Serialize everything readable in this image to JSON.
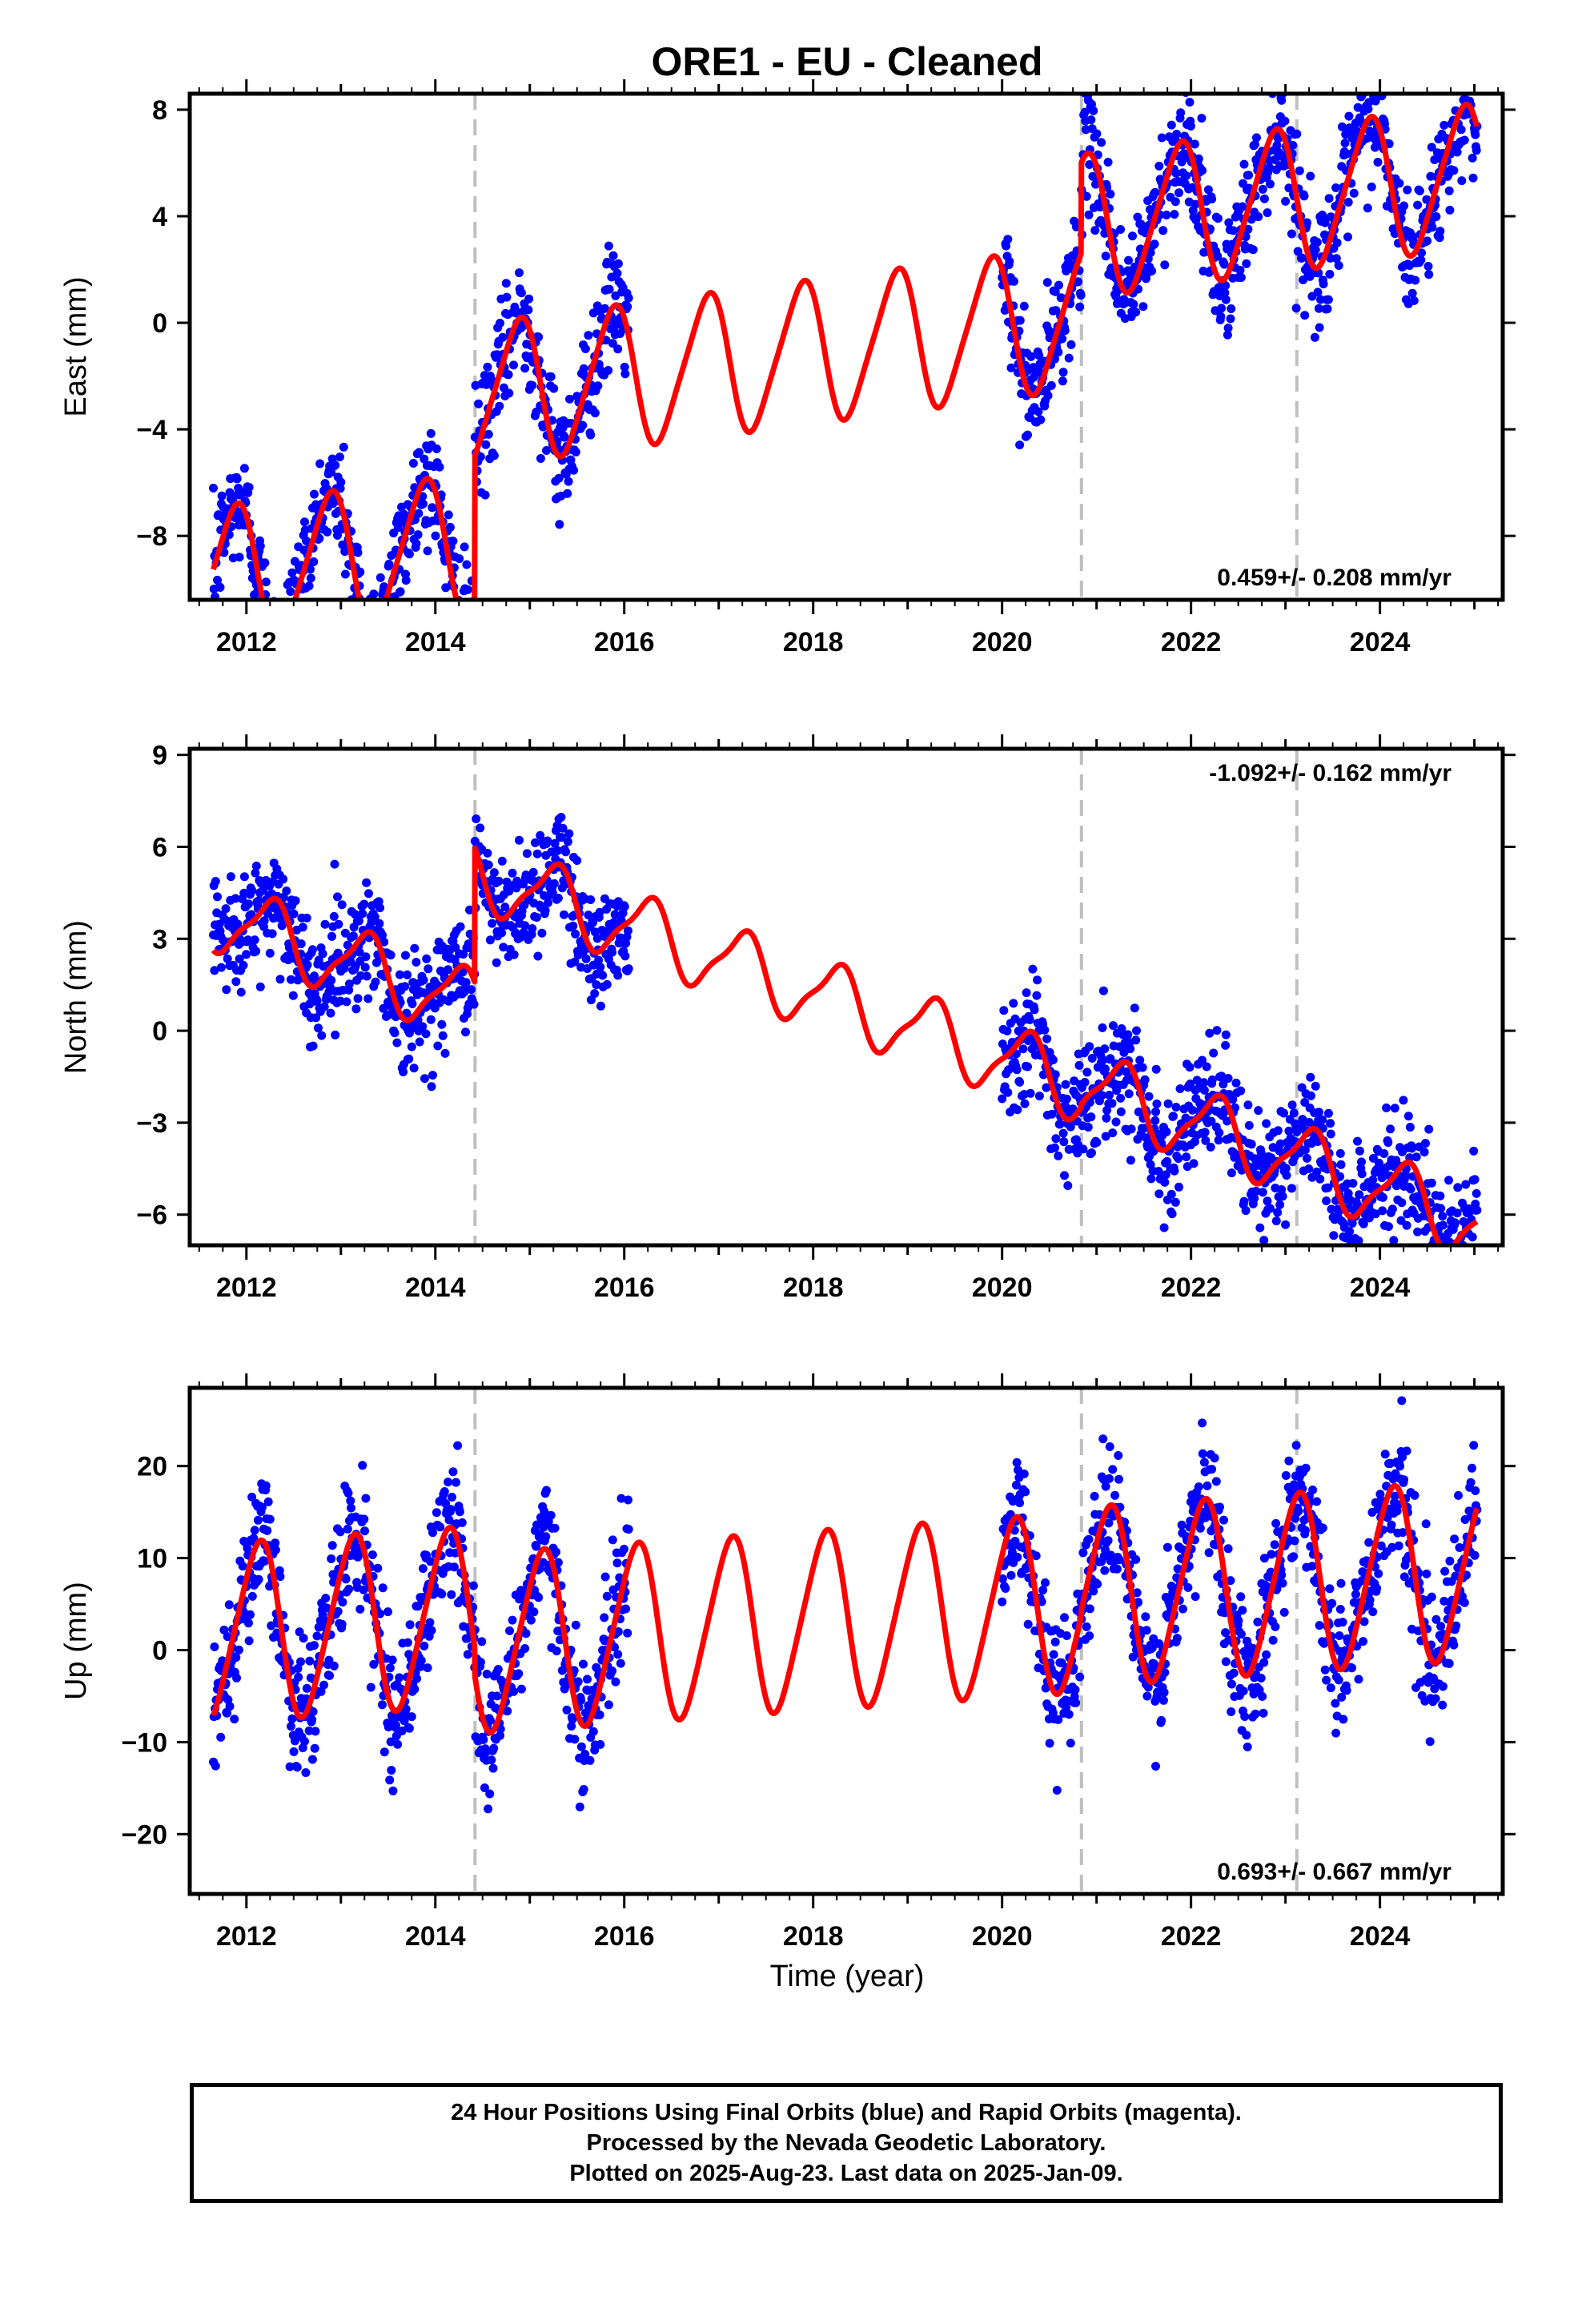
{
  "title": "ORE1  - EU - Cleaned",
  "xlabel": "Time (year)",
  "footer": {
    "line1": "24 Hour Positions Using Final Orbits (blue) and Rapid Orbits (magenta).",
    "line2": "Processed by the Nevada Geodetic Laboratory.",
    "line3": "Plotted on 2025-Aug-23. Last data on 2025-Jan-09."
  },
  "colors": {
    "data": "#0000ff",
    "model": "#ff0000",
    "breaks": "#bfbfbf",
    "frame": "#000000"
  },
  "chart_data": [
    {
      "type": "scatter",
      "component": "East",
      "ylabel": "East (mm)",
      "xlim": [
        2011.4,
        2025.3
      ],
      "ylim": [
        -10.4,
        8.6
      ],
      "yticks": [
        -8,
        -4,
        0,
        4,
        8
      ],
      "xticks": [
        2012,
        2014,
        2016,
        2018,
        2020,
        2022,
        2024
      ],
      "xtick_labels": [
        "2012",
        "2014",
        "2016",
        "2018",
        "2020",
        "2022",
        "2024"
      ],
      "rate": "0.459+/- 0.208 mm/yr",
      "rate_position": "bottom-right",
      "breaks": [
        2014.42,
        2020.84,
        2023.12
      ],
      "data_segments": [
        [
          2011.65,
          2014.42
        ],
        [
          2014.42,
          2016.05
        ],
        [
          2020.0,
          2025.03
        ]
      ],
      "model": {
        "rate": 0.459,
        "pieces": [
          {
            "start": 2011.65,
            "end": 2014.42,
            "offset": -9.6,
            "annual_amp": 2.6,
            "annual_phase_year": 2011.37,
            "semi_amp": 0.4
          },
          {
            "start": 2014.42,
            "end": 2020.84,
            "offset": -4.0,
            "annual_amp": 2.6,
            "annual_phase_year": 2011.37,
            "semi_amp": 0.4
          },
          {
            "start": 2020.84,
            "end": 2023.12,
            "offset": -0.6,
            "annual_amp": 2.6,
            "annual_phase_year": 2011.37,
            "semi_amp": 0.4
          },
          {
            "start": 2023.12,
            "end": 2025.03,
            "offset": -0.6,
            "annual_amp": 2.6,
            "annual_phase_year": 2011.37,
            "semi_amp": 0.4
          }
        ]
      },
      "scatter_sigma": 1.1
    },
    {
      "type": "scatter",
      "component": "North",
      "ylabel": "North (mm)",
      "xlim": [
        2011.4,
        2025.3
      ],
      "ylim": [
        -7.0,
        9.2
      ],
      "yticks": [
        -6,
        -3,
        0,
        3,
        6,
        9
      ],
      "xticks": [
        2012,
        2014,
        2016,
        2018,
        2020,
        2022,
        2024
      ],
      "xtick_labels": [
        "2012",
        "2014",
        "2016",
        "2018",
        "2020",
        "2022",
        "2024"
      ],
      "rate": "-1.092+/- 0.162 mm/yr",
      "rate_position": "top-right",
      "breaks": [
        2014.42,
        2020.84,
        2023.12
      ],
      "data_segments": [
        [
          2011.65,
          2014.42
        ],
        [
          2014.42,
          2016.05
        ],
        [
          2020.0,
          2025.03
        ]
      ],
      "model": {
        "rate": -1.092,
        "pieces": [
          {
            "start": 2011.65,
            "end": 2014.42,
            "offset": 3.8,
            "annual_amp": 1.1,
            "annual_phase_year": 2011.75,
            "semi_amp": 0.3
          },
          {
            "start": 2014.42,
            "end": 2020.84,
            "offset": 8.2,
            "annual_amp": 1.1,
            "annual_phase_year": 2011.75,
            "semi_amp": 0.3
          },
          {
            "start": 2020.84,
            "end": 2023.12,
            "offset": 8.3,
            "annual_amp": 1.1,
            "annual_phase_year": 2011.75,
            "semi_amp": 0.3
          },
          {
            "start": 2023.12,
            "end": 2025.03,
            "offset": 8.3,
            "annual_amp": 1.1,
            "annual_phase_year": 2011.75,
            "semi_amp": 0.3
          }
        ]
      },
      "scatter_sigma": 0.95
    },
    {
      "type": "scatter",
      "component": "Up",
      "ylabel": "Up (mm)",
      "xlim": [
        2011.4,
        2025.3
      ],
      "ylim": [
        -26.5,
        28.5
      ],
      "yticks": [
        -20,
        -10,
        0,
        10,
        20
      ],
      "xticks": [
        2012,
        2014,
        2016,
        2018,
        2020,
        2022,
        2024
      ],
      "xtick_labels": [
        "2012",
        "2014",
        "2016",
        "2018",
        "2020",
        "2022",
        "2024"
      ],
      "rate": "0.693+/- 0.667 mm/yr",
      "rate_position": "bottom-right",
      "breaks": [
        2014.42,
        2020.84,
        2023.12
      ],
      "data_segments": [
        [
          2011.65,
          2014.42
        ],
        [
          2014.42,
          2016.05
        ],
        [
          2020.0,
          2025.03
        ]
      ],
      "model": {
        "rate": 0.693,
        "pieces": [
          {
            "start": 2011.65,
            "end": 2014.42,
            "offset": 1.8,
            "annual_amp": 9.5,
            "annual_phase_year": 2011.62,
            "semi_amp": 1.2
          },
          {
            "start": 2014.42,
            "end": 2020.84,
            "offset": -1.2,
            "annual_amp": 9.5,
            "annual_phase_year": 2011.62,
            "semi_amp": 1.2
          },
          {
            "start": 2020.84,
            "end": 2023.12,
            "offset": -0.6,
            "annual_amp": 9.5,
            "annual_phase_year": 2011.62,
            "semi_amp": 1.2
          },
          {
            "start": 2023.12,
            "end": 2025.03,
            "offset": -0.6,
            "annual_amp": 9.5,
            "annual_phase_year": 2011.62,
            "semi_amp": 1.2
          }
        ]
      },
      "scatter_sigma": 3.6
    }
  ]
}
